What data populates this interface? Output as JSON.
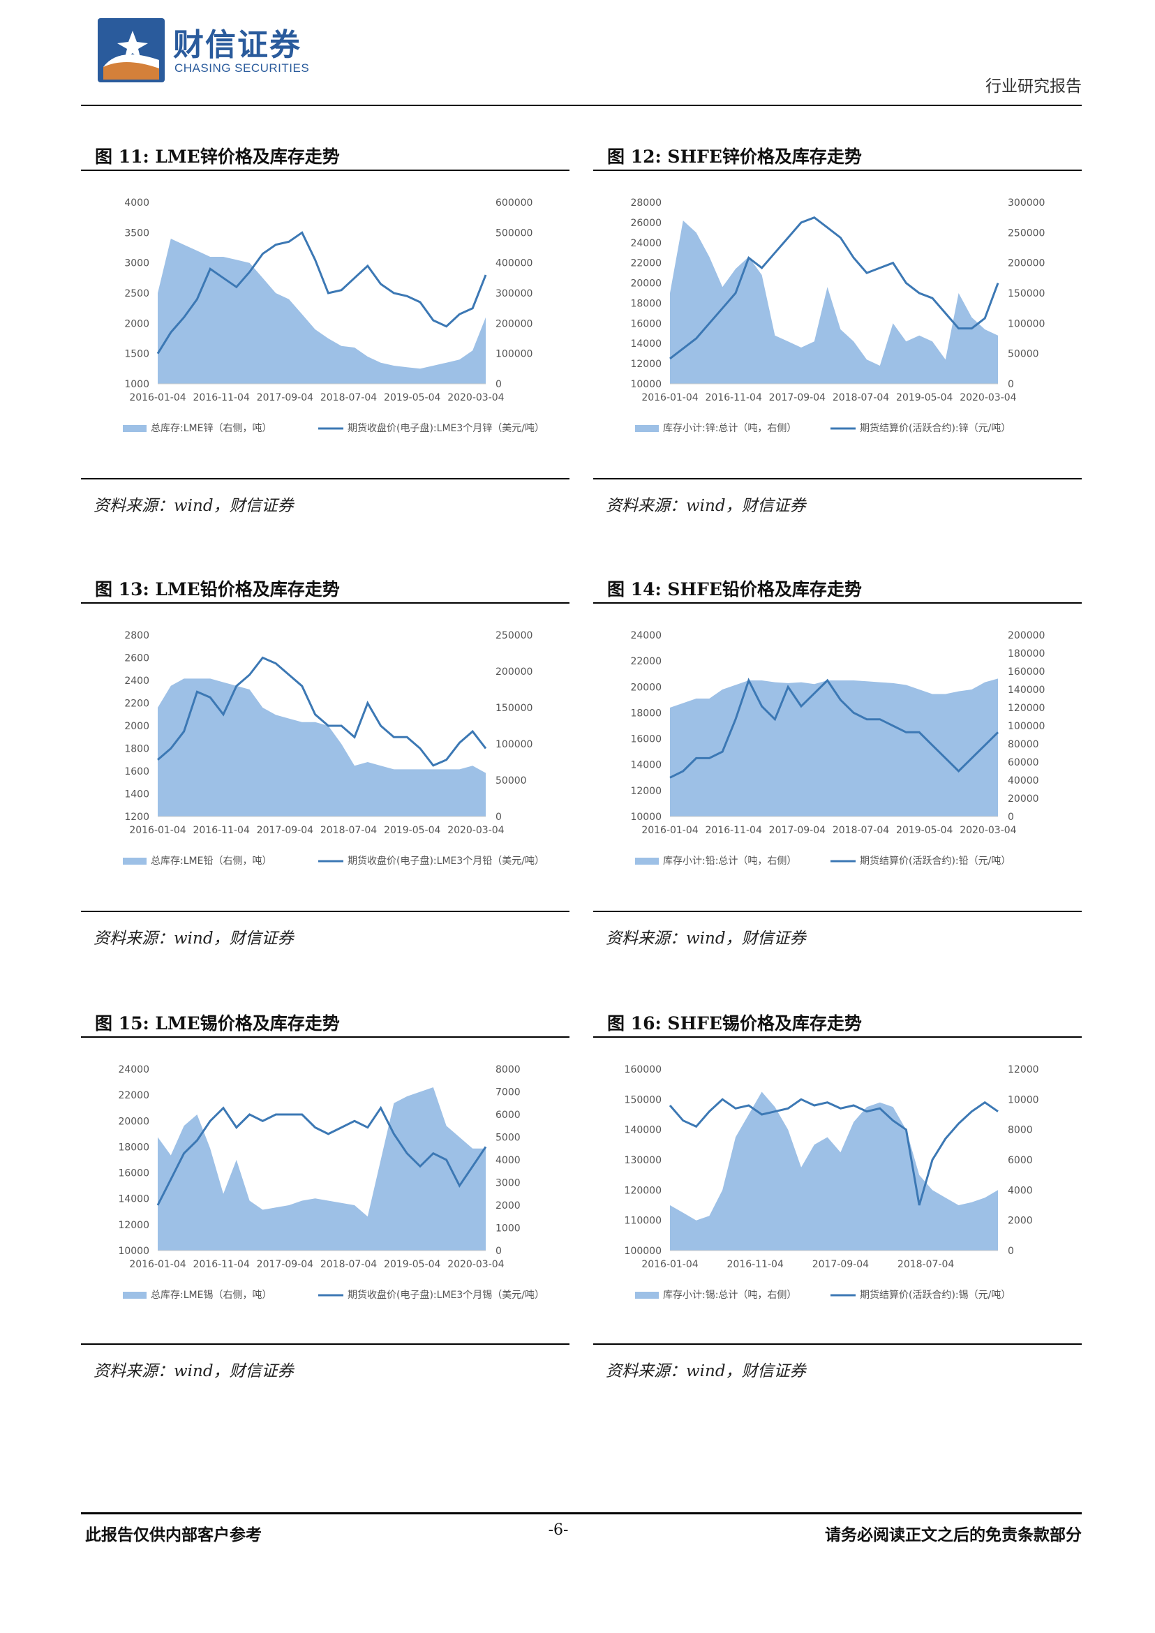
{
  "header": {
    "logo_cn": "财信证券",
    "logo_en": "CHASING SECURITIES",
    "report_type": "行业研究报告",
    "logo_colors": {
      "blue": "#2a5b9c",
      "orange": "#d4803a"
    }
  },
  "figures": [
    {
      "title": "图 11:  LME锌价格及库存走势",
      "source": "资料来源：wind，财信证券",
      "legend_area": "总库存:LME锌（右侧，吨）",
      "legend_line": "期货收盘价(电子盘):LME3个月锌（美元/吨）"
    },
    {
      "title": "图 12:  SHFE锌价格及库存走势",
      "source": "资料来源：wind，财信证券",
      "legend_area": "库存小计:锌:总计（吨，右侧）",
      "legend_line": "期货结算价(活跃合约):锌（元/吨）"
    },
    {
      "title": "图 13:  LME铅价格及库存走势",
      "source": "资料来源：wind，财信证券",
      "legend_area": "总库存:LME铅（右侧，吨）",
      "legend_line": "期货收盘价(电子盘):LME3个月铅（美元/吨）"
    },
    {
      "title": "图 14:  SHFE铅价格及库存走势",
      "source": "资料来源：wind，财信证券",
      "legend_area": "库存小计:铅:总计（吨，右侧）",
      "legend_line": "期货结算价(活跃合约):铅（元/吨）"
    },
    {
      "title": "图 15:  LME锡价格及库存走势",
      "source": "资料来源：wind，财信证券",
      "legend_area": "总库存:LME锡（右侧，吨）",
      "legend_line": "期货收盘价(电子盘):LME3个月锡（美元/吨）"
    },
    {
      "title": "图 16:  SHFE锡价格及库存走势",
      "source": "资料来源：wind，财信证券",
      "legend_area": "库存小计:锡:总计（吨，右侧）",
      "legend_line": "期货结算价(活跃合约):锡（元/吨）"
    }
  ],
  "chart_data": [
    {
      "type": "area+line",
      "x_ticks": [
        "2016-01-04",
        "2016-11-04",
        "2017-09-04",
        "2018-07-04",
        "2019-05-04",
        "2020-03-04"
      ],
      "y_left_ticks": [
        "4000",
        "3500",
        "3000",
        "2500",
        "2000",
        "1500",
        "1000"
      ],
      "y_right_ticks": [
        "600000",
        "500000",
        "400000",
        "300000",
        "200000",
        "100000",
        "0"
      ],
      "ylim_left": [
        1000,
        4000
      ],
      "ylim_right": [
        0,
        600000
      ],
      "series": [
        {
          "name": "总库存:LME锌（右侧，吨）",
          "kind": "area",
          "axis": "right",
          "values": [
            300000,
            480000,
            460000,
            440000,
            420000,
            420000,
            410000,
            400000,
            350000,
            300000,
            280000,
            230000,
            180000,
            150000,
            125000,
            120000,
            90000,
            70000,
            60000,
            55000,
            50000,
            60000,
            70000,
            80000,
            110000,
            220000
          ]
        },
        {
          "name": "期货收盘价(电子盘):LME3个月锌（美元/吨）",
          "kind": "line",
          "axis": "left",
          "values": [
            1500,
            1850,
            2100,
            2400,
            2900,
            2750,
            2600,
            2850,
            3150,
            3300,
            3350,
            3500,
            3050,
            2500,
            2550,
            2750,
            2950,
            2650,
            2500,
            2450,
            2350,
            2050,
            1950,
            2150,
            2250,
            2800
          ]
        }
      ],
      "colors": {
        "area": "#9dc0e6",
        "line": "#3c78b4"
      }
    },
    {
      "type": "area+line",
      "x_ticks": [
        "2016-01-04",
        "2016-11-04",
        "2017-09-04",
        "2018-07-04",
        "2019-05-04",
        "2020-03-04"
      ],
      "y_left_ticks": [
        "28000",
        "26000",
        "24000",
        "22000",
        "20000",
        "18000",
        "16000",
        "14000",
        "12000",
        "10000"
      ],
      "y_right_ticks": [
        "300000",
        "250000",
        "200000",
        "150000",
        "100000",
        "50000",
        "0"
      ],
      "ylim_left": [
        10000,
        28000
      ],
      "ylim_right": [
        0,
        300000
      ],
      "series": [
        {
          "name": "库存小计:锌:总计（吨，右侧）",
          "kind": "area",
          "axis": "right",
          "values": [
            150000,
            270000,
            250000,
            210000,
            160000,
            190000,
            210000,
            180000,
            80000,
            70000,
            60000,
            70000,
            160000,
            90000,
            70000,
            40000,
            30000,
            100000,
            70000,
            80000,
            70000,
            40000,
            150000,
            110000,
            90000,
            80000
          ]
        },
        {
          "name": "期货结算价(活跃合约):锌（元/吨）",
          "kind": "line",
          "axis": "left",
          "values": [
            12500,
            13500,
            14500,
            16000,
            17500,
            19000,
            22500,
            21500,
            23000,
            24500,
            26000,
            26500,
            25500,
            24500,
            22500,
            21000,
            21500,
            22000,
            20000,
            19000,
            18500,
            17000,
            15500,
            15500,
            16500,
            20000
          ]
        }
      ],
      "colors": {
        "area": "#9dc0e6",
        "line": "#3c78b4"
      }
    },
    {
      "type": "area+line",
      "x_ticks": [
        "2016-01-04",
        "2016-11-04",
        "2017-09-04",
        "2018-07-04",
        "2019-05-04",
        "2020-03-04"
      ],
      "y_left_ticks": [
        "2800",
        "2600",
        "2400",
        "2200",
        "2000",
        "1800",
        "1600",
        "1400",
        "1200"
      ],
      "y_right_ticks": [
        "250000",
        "200000",
        "150000",
        "100000",
        "50000",
        "0"
      ],
      "ylim_left": [
        1200,
        2800
      ],
      "ylim_right": [
        0,
        250000
      ],
      "series": [
        {
          "name": "总库存:LME铅（右侧，吨）",
          "kind": "area",
          "axis": "right",
          "values": [
            150000,
            180000,
            190000,
            190000,
            190000,
            185000,
            180000,
            175000,
            150000,
            140000,
            135000,
            130000,
            130000,
            125000,
            100000,
            70000,
            75000,
            70000,
            65000,
            65000,
            65000,
            65000,
            65000,
            65000,
            70000,
            60000
          ]
        },
        {
          "name": "期货收盘价(电子盘):LME3个月铅（美元/吨）",
          "kind": "line",
          "axis": "left",
          "values": [
            1700,
            1800,
            1950,
            2300,
            2250,
            2100,
            2350,
            2450,
            2600,
            2550,
            2450,
            2350,
            2100,
            2000,
            2000,
            1900,
            2200,
            2000,
            1900,
            1900,
            1800,
            1650,
            1700,
            1850,
            1950,
            1800
          ]
        }
      ],
      "colors": {
        "area": "#9dc0e6",
        "line": "#3c78b4"
      }
    },
    {
      "type": "area+line",
      "x_ticks": [
        "2016-01-04",
        "2016-11-04",
        "2017-09-04",
        "2018-07-04",
        "2019-05-04",
        "2020-03-04"
      ],
      "y_left_ticks": [
        "24000",
        "22000",
        "20000",
        "18000",
        "16000",
        "14000",
        "12000",
        "10000"
      ],
      "y_right_ticks": [
        "200000",
        "180000",
        "160000",
        "140000",
        "120000",
        "100000",
        "80000",
        "60000",
        "40000",
        "20000",
        "0"
      ],
      "ylim_left": [
        10000,
        24000
      ],
      "ylim_right": [
        0,
        200000
      ],
      "series": [
        {
          "name": "库存小计:铅:总计（吨，右侧）",
          "kind": "area",
          "axis": "right",
          "values": [
            120000,
            125000,
            130000,
            130000,
            140000,
            145000,
            150000,
            150000,
            148000,
            147000,
            148000,
            146000,
            150000,
            150000,
            150000,
            149000,
            148000,
            147000,
            145000,
            140000,
            135000,
            135000,
            138000,
            140000,
            148000,
            152000
          ]
        },
        {
          "name": "期货结算价(活跃合约):铅（元/吨）",
          "kind": "line",
          "axis": "left",
          "values": [
            13000,
            13500,
            14500,
            14500,
            15000,
            17500,
            20500,
            18500,
            17500,
            20000,
            18500,
            19500,
            20500,
            19000,
            18000,
            17500,
            17500,
            17000,
            16500,
            16500,
            15500,
            14500,
            13500,
            14500,
            15500,
            16500
          ]
        }
      ],
      "colors": {
        "area": "#9dc0e6",
        "line": "#3c78b4"
      }
    },
    {
      "type": "area+line",
      "x_ticks": [
        "2016-01-04",
        "2016-11-04",
        "2017-09-04",
        "2018-07-04",
        "2019-05-04",
        "2020-03-04"
      ],
      "y_left_ticks": [
        "24000",
        "22000",
        "20000",
        "18000",
        "16000",
        "14000",
        "12000",
        "10000"
      ],
      "y_right_ticks": [
        "8000",
        "7000",
        "6000",
        "5000",
        "4000",
        "3000",
        "2000",
        "1000",
        "0"
      ],
      "ylim_left": [
        10000,
        24000
      ],
      "ylim_right": [
        0,
        8000
      ],
      "series": [
        {
          "name": "总库存:LME锡（右侧，吨）",
          "kind": "area",
          "axis": "right",
          "values": [
            5000,
            4200,
            5500,
            6000,
            4500,
            2500,
            4000,
            2200,
            1800,
            1900,
            2000,
            2200,
            2300,
            2200,
            2100,
            2000,
            1500,
            4000,
            6500,
            6800,
            7000,
            7200,
            5500,
            5000,
            4500,
            4500
          ]
        },
        {
          "name": "期货收盘价(电子盘):LME3个月锡（美元/吨）",
          "kind": "line",
          "axis": "left",
          "values": [
            13500,
            15500,
            17500,
            18500,
            20000,
            21000,
            19500,
            20500,
            20000,
            20500,
            20500,
            20500,
            19500,
            19000,
            19500,
            20000,
            19500,
            21000,
            19000,
            17500,
            16500,
            17500,
            17000,
            15000,
            16500,
            18000
          ]
        }
      ],
      "colors": {
        "area": "#9dc0e6",
        "line": "#3c78b4"
      }
    },
    {
      "type": "area+line",
      "x_ticks": [
        "2016-01-04",
        "2016-11-04",
        "2017-09-04",
        "2018-07-04"
      ],
      "y_left_ticks": [
        "160000",
        "150000",
        "140000",
        "130000",
        "120000",
        "110000",
        "100000"
      ],
      "y_right_ticks": [
        "12000",
        "10000",
        "8000",
        "6000",
        "4000",
        "2000",
        "0"
      ],
      "ylim_left": [
        100000,
        160000
      ],
      "ylim_right": [
        0,
        12000
      ],
      "series": [
        {
          "name": "库存小计:锡:总计（吨，右侧）",
          "kind": "area",
          "axis": "right",
          "values": [
            3000,
            2500,
            2000,
            2300,
            4000,
            7500,
            9000,
            10500,
            9500,
            8000,
            5500,
            7000,
            7500,
            6500,
            8500,
            9500,
            9800,
            9500,
            8000,
            5000,
            4000,
            3500,
            3000,
            3200,
            3500,
            4000
          ]
        },
        {
          "name": "期货结算价(活跃合约):锡（元/吨）",
          "kind": "line",
          "axis": "left",
          "values": [
            148000,
            143000,
            141000,
            146000,
            150000,
            147000,
            148000,
            145000,
            146000,
            147000,
            150000,
            148000,
            149000,
            147000,
            148000,
            146000,
            147000,
            143000,
            140000,
            115000,
            130000,
            137000,
            142000,
            146000,
            149000,
            146000
          ]
        }
      ],
      "colors": {
        "area": "#9dc0e6",
        "line": "#3c78b4"
      }
    }
  ],
  "footer": {
    "left": "此报告仅供内部客户参考",
    "page": "-6-",
    "right": "请务必阅读正文之后的免责条款部分"
  }
}
